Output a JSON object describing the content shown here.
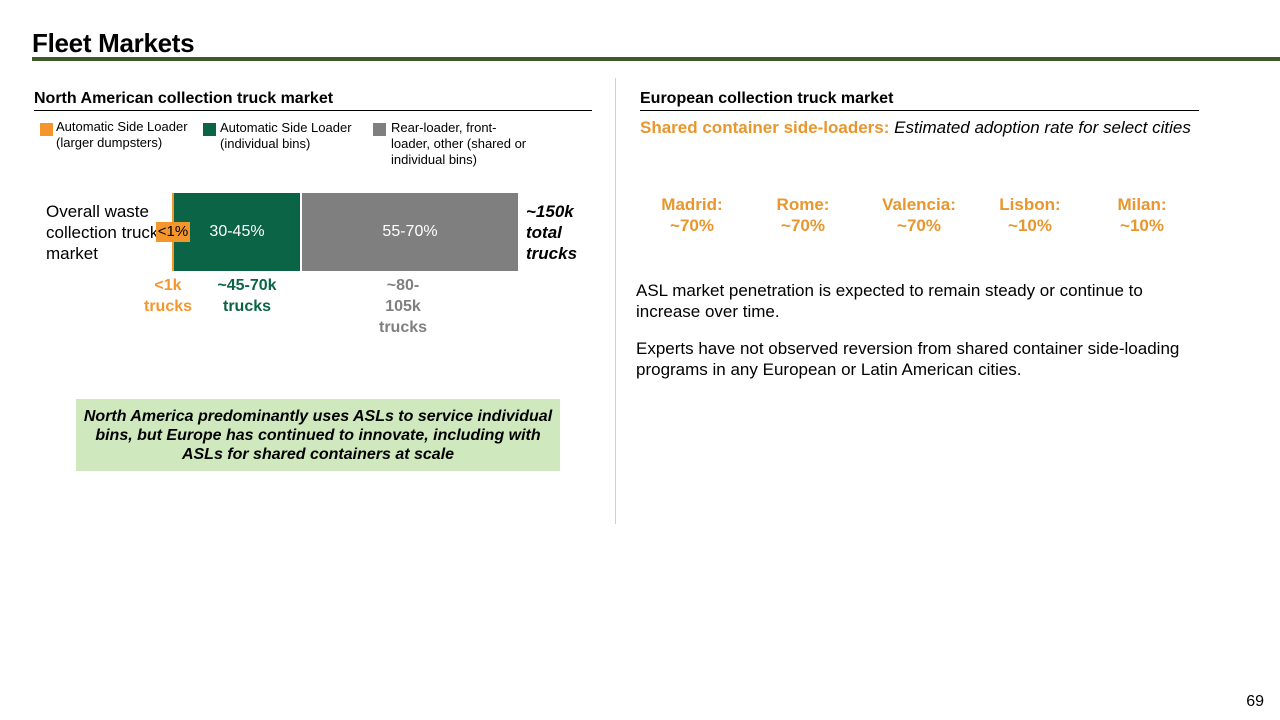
{
  "title": "Fleet Markets",
  "north_america": {
    "heading": "North American collection truck market",
    "legend": [
      {
        "label": "Automatic Side Loader (larger dumpsters)",
        "color": "#f5962d"
      },
      {
        "label": "Automatic Side Loader (individual bins)",
        "color": "#0b6446"
      },
      {
        "label": "Rear-loader, front-loader, other (shared or individual bins)",
        "color": "#7f7f7f"
      }
    ],
    "row_label": "Overall waste collection truck market",
    "segments": [
      {
        "label": "<1%",
        "trucks": "<1k trucks"
      },
      {
        "label": "30-45%",
        "trucks": "~45-70k trucks"
      },
      {
        "label": "55-70%",
        "trucks": "~80-105k trucks"
      }
    ],
    "total": "~150k total trucks",
    "callout": "North America predominantly uses ASLs to service individual bins, but Europe has continued to innovate, including with ASLs for shared containers at scale"
  },
  "europe": {
    "heading": "European collection truck market",
    "subtitle_lead": "Shared container side-loaders:",
    "subtitle_rest": "Estimated adoption rate for select cities",
    "cities": [
      {
        "name": "Madrid:",
        "rate": "~70%"
      },
      {
        "name": "Rome:",
        "rate": "~70%"
      },
      {
        "name": "Valencia:",
        "rate": "~70%"
      },
      {
        "name": "Lisbon:",
        "rate": "~10%"
      },
      {
        "name": "Milan:",
        "rate": "~10%"
      }
    ],
    "paragraphs": [
      "ASL market penetration is expected to remain steady or continue to increase over time.",
      "Experts have not observed reversion from shared container side-loading programs in any European or Latin American cities."
    ]
  },
  "page_number": "69"
}
